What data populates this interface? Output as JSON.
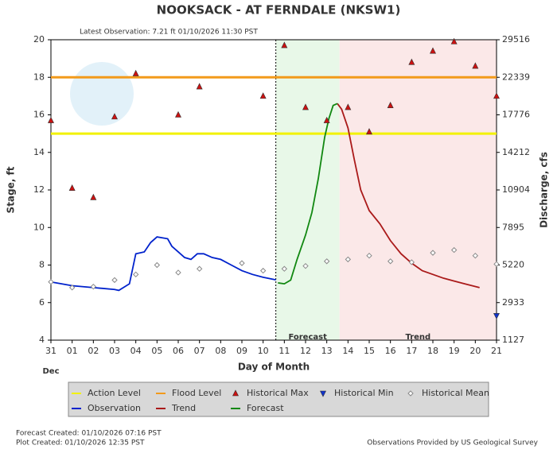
{
  "chart_data": {
    "type": "line",
    "title": "NOOKSACK - AT FERNDALE  (NKSW1)",
    "subtitle": "Latest Observation: 7.21 ft 01/10/2026 11:30 PST",
    "xlabel": "Day of Month",
    "x_sublabel": "Dec",
    "ylabel": "Stage, ft",
    "y2label": "Discharge, cfs",
    "xlim": [
      0,
      21
    ],
    "xticks": [
      {
        "value": 0,
        "label": "31"
      },
      {
        "value": 1,
        "label": "01"
      },
      {
        "value": 2,
        "label": "02"
      },
      {
        "value": 3,
        "label": "03"
      },
      {
        "value": 4,
        "label": "04"
      },
      {
        "value": 5,
        "label": "05"
      },
      {
        "value": 6,
        "label": "06"
      },
      {
        "value": 7,
        "label": "07"
      },
      {
        "value": 8,
        "label": "08"
      },
      {
        "value": 9,
        "label": "09"
      },
      {
        "value": 10,
        "label": "10"
      },
      {
        "value": 11,
        "label": "11"
      },
      {
        "value": 12,
        "label": "12"
      },
      {
        "value": 13,
        "label": "13"
      },
      {
        "value": 14,
        "label": "14"
      },
      {
        "value": 15,
        "label": "15"
      },
      {
        "value": 16,
        "label": "16"
      },
      {
        "value": 17,
        "label": "17"
      },
      {
        "value": 18,
        "label": "18"
      },
      {
        "value": 19,
        "label": "19"
      },
      {
        "value": 20,
        "label": "20"
      },
      {
        "value": 21,
        "label": "21"
      }
    ],
    "ylim": [
      4,
      20
    ],
    "yticks": [
      4,
      6,
      8,
      10,
      12,
      14,
      16,
      18,
      20
    ],
    "y2ticks": [
      1127,
      2933,
      5220,
      7895,
      10904,
      14212,
      17776,
      22339,
      29516
    ],
    "thresholds": [
      {
        "name": "Action Level",
        "value": 15,
        "color": "#f2f200"
      },
      {
        "name": "Flood Level",
        "value": 18,
        "color": "#f29a1a"
      }
    ],
    "regions": [
      {
        "label": "Forecast",
        "start": 10.6,
        "end": 13.6,
        "color": "#e8f8e8"
      },
      {
        "label": "Trend",
        "start": 13.6,
        "end": 21,
        "color": "#fbe8e8"
      }
    ],
    "series": [
      {
        "name": "Observation",
        "color": "#0022cc",
        "style": "line",
        "x": [
          0,
          1,
          2,
          3,
          3.2,
          3.7,
          4,
          4.4,
          4.7,
          5,
          5.5,
          5.7,
          6,
          6.3,
          6.6,
          6.9,
          7.2,
          7.6,
          8,
          8.5,
          9,
          9.5,
          10,
          10.6
        ],
        "values": [
          7.1,
          6.9,
          6.8,
          6.7,
          6.65,
          7.0,
          8.6,
          8.7,
          9.2,
          9.5,
          9.4,
          9.0,
          8.7,
          8.4,
          8.3,
          8.6,
          8.6,
          8.4,
          8.3,
          8.0,
          7.7,
          7.5,
          7.35,
          7.21
        ]
      },
      {
        "name": "Trend",
        "color": "#aa1a1a",
        "style": "line",
        "x": [
          13.5,
          13.7,
          14,
          14.3,
          14.6,
          15,
          15.5,
          16,
          16.5,
          17,
          17.5,
          18,
          18.5,
          19,
          19.5,
          20.2
        ],
        "values": [
          16.6,
          16.3,
          15.3,
          13.6,
          12.0,
          10.9,
          10.2,
          9.3,
          8.6,
          8.1,
          7.7,
          7.5,
          7.3,
          7.15,
          7.0,
          6.8
        ]
      },
      {
        "name": "Forecast",
        "color": "#118811",
        "style": "line",
        "x": [
          10.7,
          11,
          11.3,
          11.6,
          12,
          12.3,
          12.6,
          12.9,
          13.1,
          13.3,
          13.5
        ],
        "values": [
          7.05,
          7.0,
          7.2,
          8.3,
          9.6,
          10.8,
          12.6,
          14.8,
          15.8,
          16.5,
          16.6
        ]
      },
      {
        "name": "Historical Max",
        "color": "#cc1111",
        "style": "triangle-up",
        "x": [
          0,
          1,
          2,
          3,
          4,
          6,
          7,
          10,
          11,
          12,
          13,
          14,
          15,
          16,
          17,
          18,
          19,
          20,
          21
        ],
        "values": [
          15.7,
          12.1,
          11.6,
          15.9,
          18.2,
          16.0,
          17.5,
          17.0,
          19.7,
          16.4,
          15.7,
          16.4,
          15.1,
          16.5,
          18.8,
          19.4,
          19.9,
          18.6,
          17.0
        ]
      },
      {
        "name": "Historical Min",
        "color": "#1133cc",
        "style": "triangle-down",
        "x": [
          21
        ],
        "values": [
          5.3
        ]
      },
      {
        "name": "Historical Mean",
        "color": "#888888",
        "style": "diamond",
        "x": [
          0,
          1,
          2,
          3,
          4,
          5,
          6,
          7,
          9,
          10,
          11,
          12,
          13,
          14,
          15,
          16,
          17,
          18,
          19,
          20,
          21
        ],
        "values": [
          7.1,
          6.8,
          6.85,
          7.2,
          7.5,
          8.0,
          7.6,
          7.8,
          8.1,
          7.7,
          7.8,
          7.95,
          8.2,
          8.3,
          8.5,
          8.2,
          8.15,
          8.65,
          8.8,
          8.5,
          8.05
        ]
      }
    ]
  },
  "footer": {
    "forecast_created": "Forecast Created: 01/10/2026 07:16 PST",
    "plot_created": "Plot Created: 01/10/2026 12:35 PST",
    "credit": "Observations Provided by US Geological Survey"
  }
}
